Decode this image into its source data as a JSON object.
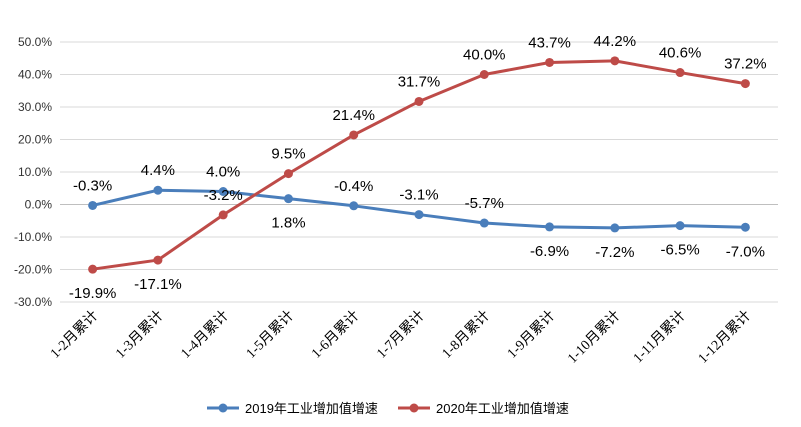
{
  "chart_data": {
    "type": "line",
    "categories": [
      "1-2月累计",
      "1-3月累计",
      "1-4月累计",
      "1-5月累计",
      "1-6月累计",
      "1-7月累计",
      "1-8月累计",
      "1-9月累计",
      "1-10月累计",
      "1-11月累计",
      "1-12月累计"
    ],
    "series": [
      {
        "name": "2019年工业增加值增速",
        "color": "#4a7ebb",
        "values": [
          -0.3,
          4.4,
          4.0,
          1.8,
          -0.4,
          -3.1,
          -5.7,
          -6.9,
          -7.2,
          -6.5,
          -7.0
        ],
        "labels": [
          "-0.3%",
          "4.4%",
          "4.0%",
          "1.8%",
          "-0.4%",
          "-3.1%",
          "-5.7%",
          "-6.9%",
          "-7.2%",
          "-6.5%",
          "-7.0%"
        ]
      },
      {
        "name": "2020年工业增加值增速",
        "color": "#be4b48",
        "values": [
          -19.9,
          -17.1,
          -3.2,
          9.5,
          21.4,
          31.7,
          40.0,
          43.7,
          44.2,
          40.6,
          37.2
        ],
        "labels": [
          "-19.9%",
          "-17.1%",
          "-3.2%",
          "9.5%",
          "21.4%",
          "31.7%",
          "40.0%",
          "43.7%",
          "44.2%",
          "40.6%",
          "37.2%"
        ]
      }
    ],
    "yticks": [
      "50.0%",
      "40.0%",
      "30.0%",
      "20.0%",
      "10.0%",
      "0.0%",
      "-10.0%",
      "-20.0%",
      "-30.0%"
    ],
    "ytick_values": [
      50,
      40,
      30,
      20,
      10,
      0,
      -10,
      -20,
      -30
    ],
    "ylim": [
      -30,
      50
    ],
    "grid": true,
    "legend": "bottom",
    "gridline_color": "#d9d9d9",
    "zero_line_color": "#bfbfbf"
  }
}
